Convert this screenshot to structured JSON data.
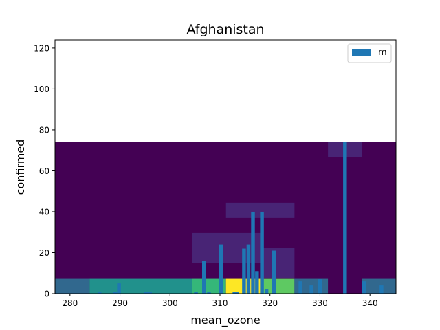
{
  "chart_data": {
    "type": "bar",
    "title": "Afghanistan",
    "xlabel": "mean_ozone",
    "ylabel": "confirmed",
    "xlim": [
      277,
      345.2
    ],
    "ylim": [
      0,
      124
    ],
    "x_ticks": [
      280,
      290,
      300,
      310,
      320,
      330,
      340
    ],
    "y_ticks": [
      0,
      20,
      40,
      60,
      80,
      100,
      120
    ],
    "grid": false,
    "legend": {
      "placement": "top-right",
      "entries": [
        {
          "label": "m",
          "color": "#1f77b4"
        }
      ]
    },
    "heatmap_background": {
      "colormap": "viridis",
      "y_range": [
        0,
        74.2
      ],
      "base_color": "#440154",
      "cells": [
        {
          "x0": 277,
          "x1": 283.9,
          "y0": 0,
          "y1": 7.2,
          "color": "#31688e"
        },
        {
          "x0": 283.9,
          "x1": 304.5,
          "y0": 0,
          "y1": 7.2,
          "color": "#21918c"
        },
        {
          "x0": 304.5,
          "x1": 311.2,
          "y0": 0,
          "y1": 7.2,
          "color": "#35b779"
        },
        {
          "x0": 311.2,
          "x1": 318.1,
          "y0": 0,
          "y1": 7.2,
          "color": "#fde725"
        },
        {
          "x0": 318.1,
          "x1": 324.9,
          "y0": 0,
          "y1": 7.2,
          "color": "#5ec962"
        },
        {
          "x0": 324.9,
          "x1": 331.6,
          "y0": 0,
          "y1": 7.2,
          "color": "#31688e"
        },
        {
          "x0": 338.4,
          "x1": 345.2,
          "y0": 0,
          "y1": 7.2,
          "color": "#31688e"
        },
        {
          "x0": 304.5,
          "x1": 318.1,
          "y0": 14.8,
          "y1": 29.6,
          "color": "#482475"
        },
        {
          "x0": 318.1,
          "x1": 324.9,
          "y0": 7.4,
          "y1": 22.2,
          "color": "#482475"
        },
        {
          "x0": 311.2,
          "x1": 324.9,
          "y0": 37,
          "y1": 44.4,
          "color": "#482475"
        },
        {
          "x0": 331.6,
          "x1": 338.4,
          "y0": 66.6,
          "y1": 74.2,
          "color": "#482475"
        }
      ]
    },
    "series": [
      {
        "color": "#1f77b4",
        "bar_width": 0.75,
        "points": [
          {
            "x": 289.8,
            "y": 5
          },
          {
            "x": 306.8,
            "y": 16
          },
          {
            "x": 310.2,
            "y": 24
          },
          {
            "x": 314.8,
            "y": 22
          },
          {
            "x": 315.7,
            "y": 24
          },
          {
            "x": 316.6,
            "y": 40
          },
          {
            "x": 317.4,
            "y": 11
          },
          {
            "x": 318.4,
            "y": 40
          },
          {
            "x": 320.8,
            "y": 21
          },
          {
            "x": 335,
            "y": 74
          },
          {
            "x": 285.9,
            "y": 1
          },
          {
            "x": 289,
            "y": 1
          },
          {
            "x": 295.2,
            "y": 1
          },
          {
            "x": 296,
            "y": 1
          },
          {
            "x": 305.2,
            "y": 1
          },
          {
            "x": 307.8,
            "y": 1
          },
          {
            "x": 312.9,
            "y": 1
          },
          {
            "x": 313.4,
            "y": 1
          },
          {
            "x": 319.3,
            "y": 2
          },
          {
            "x": 326.1,
            "y": 6
          },
          {
            "x": 328.3,
            "y": 4
          },
          {
            "x": 330,
            "y": 7
          },
          {
            "x": 338.8,
            "y": 6
          },
          {
            "x": 342.3,
            "y": 4
          }
        ]
      }
    ]
  }
}
